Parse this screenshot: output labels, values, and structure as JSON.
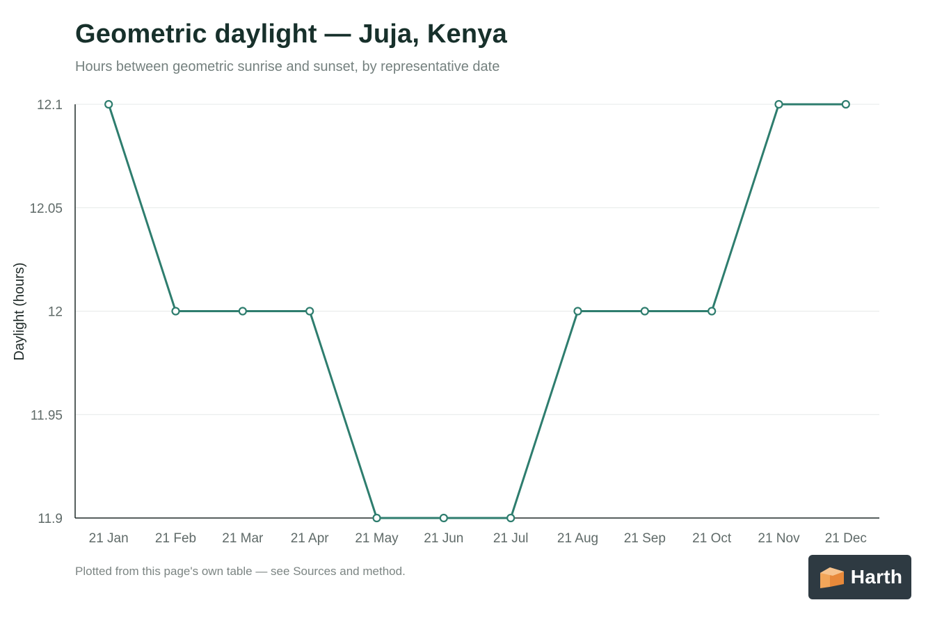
{
  "header": {
    "title": "Geometric daylight — Juja, Kenya",
    "subtitle": "Hours between geometric sunrise and sunset, by representative date"
  },
  "chart_data": {
    "type": "line",
    "ylabel": "Daylight (hours)",
    "xlabel": "",
    "categories": [
      "21 Jan",
      "21 Feb",
      "21 Mar",
      "21 Apr",
      "21 May",
      "21 Jun",
      "21 Jul",
      "21 Aug",
      "21 Sep",
      "21 Oct",
      "21 Nov",
      "21 Dec"
    ],
    "values": [
      12.1,
      12.0,
      12.0,
      12.0,
      11.9,
      11.9,
      11.9,
      12.0,
      12.0,
      12.0,
      12.1,
      12.1
    ],
    "ylim": [
      11.9,
      12.1
    ],
    "yticks": [
      "11.9",
      "11.95",
      "12",
      "12.05",
      "12.1"
    ],
    "grid": "horizontal",
    "legend": "none",
    "line_color": "#2e7d6e",
    "marker_fill": "#ffffff"
  },
  "footer": {
    "note": "Plotted from this page's own table — see Sources and method."
  },
  "brand": {
    "name": "Harth",
    "icon": "cube-logo-icon",
    "background": "#2e3a42",
    "logo_color": "#f2a65a"
  }
}
